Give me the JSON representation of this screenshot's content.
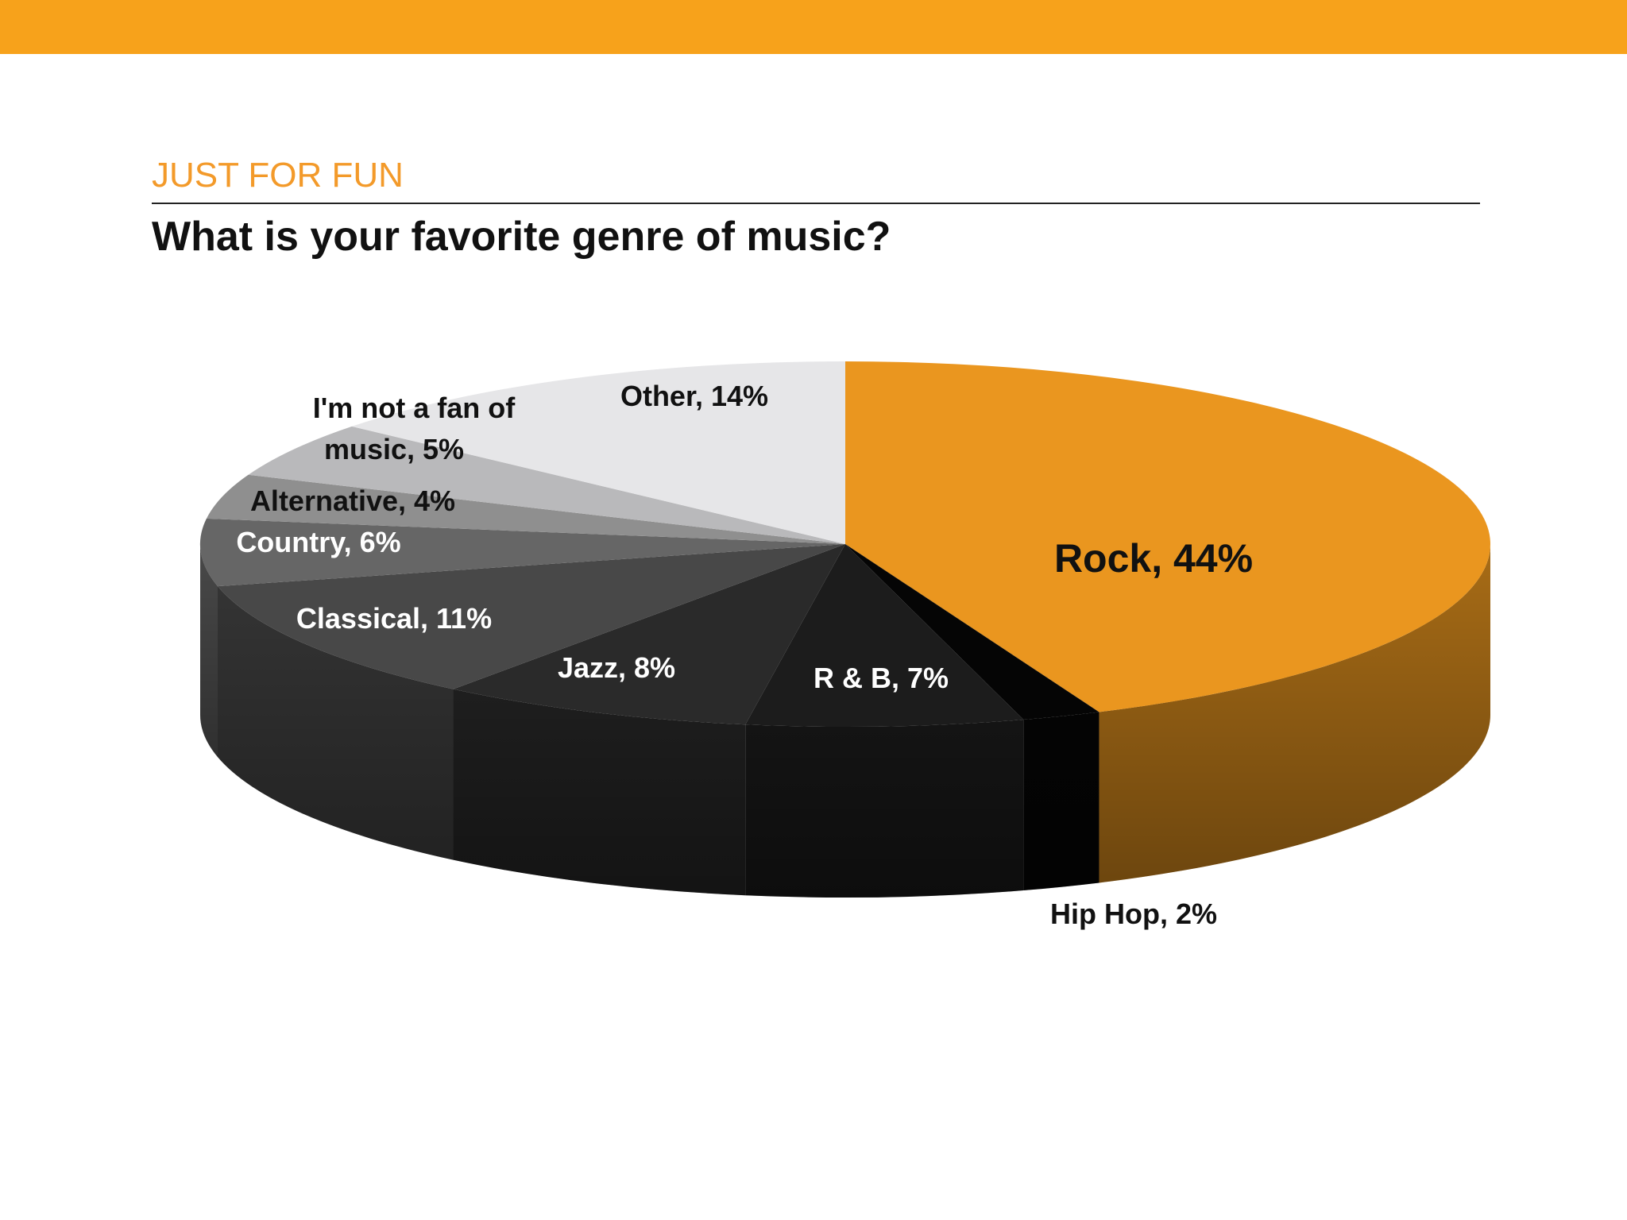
{
  "header": {
    "kicker": "JUST FOR FUN",
    "title": "What is your favorite genre of music?"
  },
  "colors": {
    "band": "#f7a21b",
    "kicker": "#f39a2a"
  },
  "chart_data": {
    "type": "pie",
    "title": "What is your favorite genre of music?",
    "style": "3d",
    "slices": [
      {
        "label": "Rock, 44%",
        "name": "Rock",
        "value": 44,
        "color": "#ea961f"
      },
      {
        "label": "Hip Hop, 2%",
        "name": "Hip Hop",
        "value": 2,
        "color": "#050505"
      },
      {
        "label": "R & B, 7%",
        "name": "R & B",
        "value": 7,
        "color": "#1c1c1c"
      },
      {
        "label": "Jazz, 8%",
        "name": "Jazz",
        "value": 8,
        "color": "#2a2a2a"
      },
      {
        "label": "Classical, 11%",
        "name": "Classical",
        "value": 11,
        "color": "#484848"
      },
      {
        "label": "Country, 6%",
        "name": "Country",
        "value": 6,
        "color": "#666666"
      },
      {
        "label": "Alternative, 4%",
        "name": "Alternative",
        "value": 4,
        "color": "#8f8f8f"
      },
      {
        "label": "I'm not a fan of music, 5%",
        "name": "I'm not a fan of music",
        "value": 5,
        "color": "#b9b9bb"
      },
      {
        "label": "Other, 14%",
        "name": "Other",
        "value": 14,
        "color": "#e6e6e8"
      }
    ]
  }
}
